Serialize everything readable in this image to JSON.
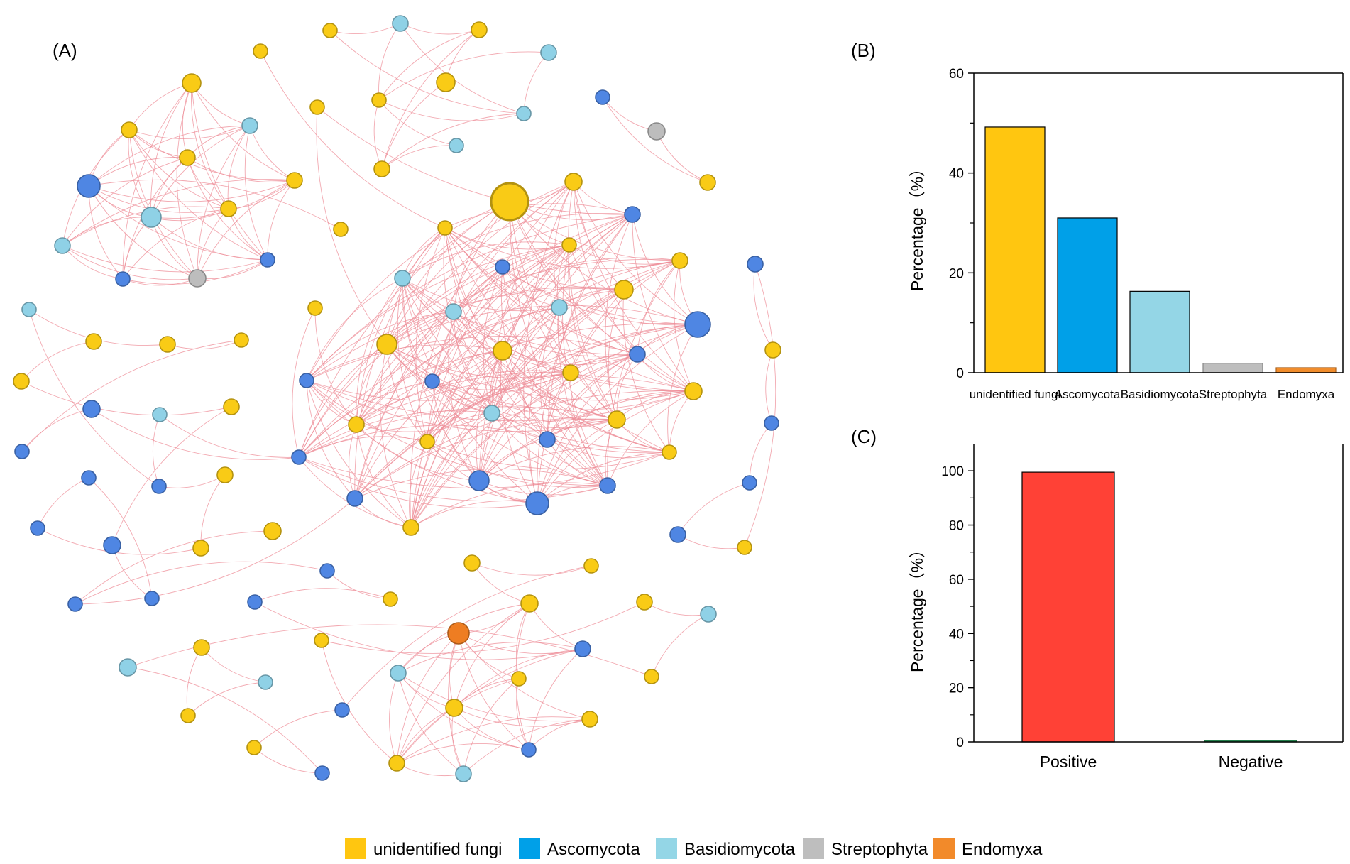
{
  "panels": {
    "a": "(A)",
    "b": "(B)",
    "c": "(C)"
  },
  "legend": [
    {
      "label": "unidentified fungi",
      "color": "#FFC610"
    },
    {
      "label": "Ascomycota",
      "color": "#00A0E8"
    },
    {
      "label": "Basidiomycota",
      "color": "#94D6E6"
    },
    {
      "label": "Streptophyta",
      "color": "#BEBEBE"
    },
    {
      "label": "Endomyxa",
      "color": "#F28A2A"
    }
  ],
  "network_colors": {
    "unidentified fungi": "#F9CB16",
    "Ascomycota": "#4F86E3",
    "Basidiomycota": "#8FD1E6",
    "Streptophyta": "#BDBDBD",
    "Endomyxa": "#EE7D22",
    "edge": "#EE8C97"
  },
  "chart_data": [
    {
      "type": "bar",
      "panel": "(B)",
      "categories": [
        "unidentified fungi",
        "Ascomycota",
        "Basidiomycota",
        "Streptophyta",
        "Endomyxa"
      ],
      "values": [
        49.2,
        31.0,
        16.3,
        1.9,
        1.0
      ],
      "colors": [
        "#FFC610",
        "#00A0E8",
        "#94D6E6",
        "#BEBEBE",
        "#F08C2C"
      ],
      "ylabel": "Percentage（%）",
      "ylim": [
        0,
        60
      ],
      "yticks": [
        0,
        20,
        40,
        60
      ]
    },
    {
      "type": "bar",
      "panel": "(C)",
      "categories": [
        "Positive",
        "Negative"
      ],
      "values": [
        99.5,
        0.5
      ],
      "colors": [
        "#FF4136",
        "#2E9E5E"
      ],
      "ylabel": "Percentage（%）",
      "ylim": [
        0,
        110
      ],
      "yticks": [
        0,
        20,
        40,
        60,
        80,
        100
      ]
    }
  ]
}
